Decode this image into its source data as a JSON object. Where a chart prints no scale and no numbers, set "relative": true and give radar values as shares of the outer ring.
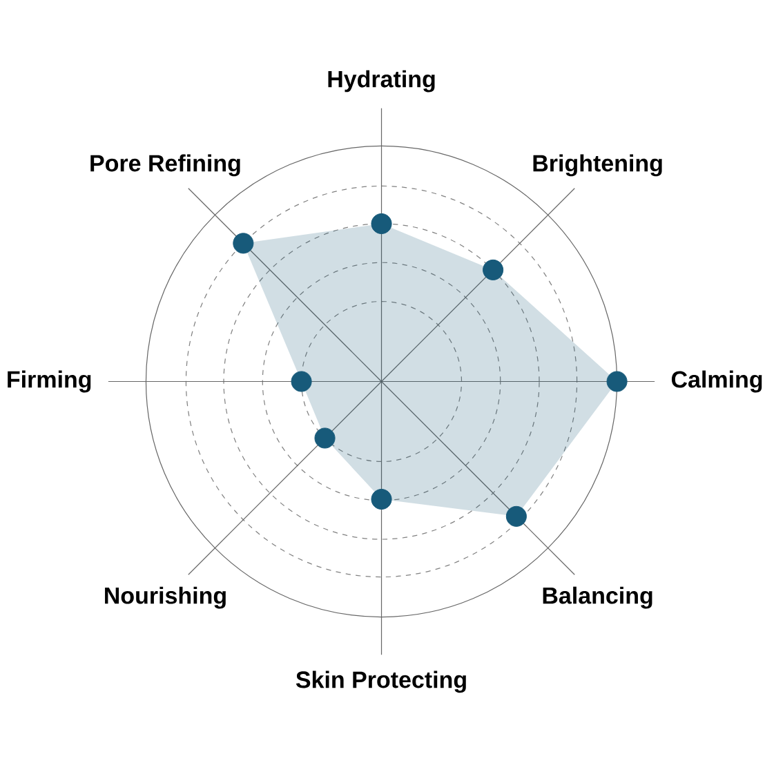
{
  "chart_data": {
    "type": "radar",
    "relative": true,
    "grid": true,
    "marker": "circle",
    "categories": [
      "Hydrating",
      "Brightening",
      "Calming",
      "Balancing",
      "Skin Protecting",
      "Nourishing",
      "Firming",
      "Pore Refining"
    ],
    "series": [
      {
        "color": "#175a7a",
        "values": [
          0.67,
          0.67,
          1.0,
          0.81,
          0.5,
          0.34,
          0.34,
          0.83
        ]
      }
    ]
  }
}
